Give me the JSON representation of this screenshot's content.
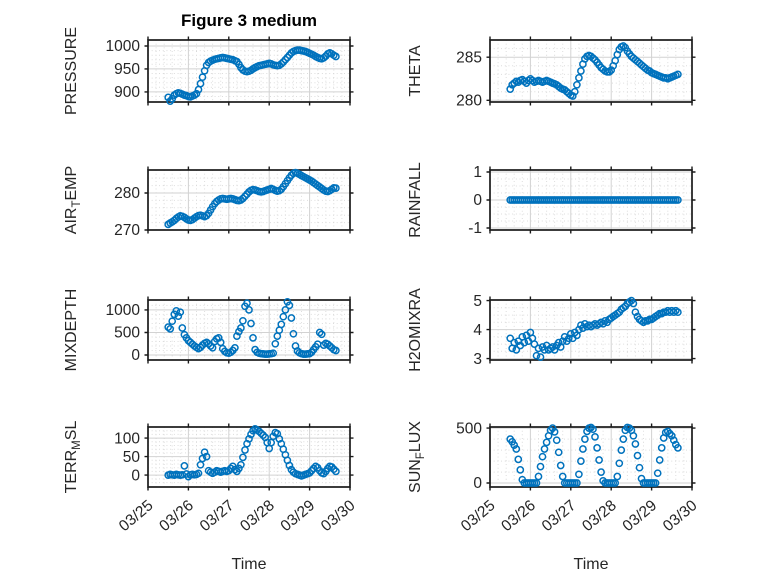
{
  "title": "Figure 3 medium",
  "chart_data": {
    "type": "scatter",
    "marker": "open-circle",
    "series_color": "#0072BD",
    "frame_color": "#1a1a1a",
    "grid_color": "#d9d9d9",
    "text_color": "#262626",
    "x_name": "Time",
    "x_tick_labels": [
      "03/25",
      "03/26",
      "03/27",
      "03/28",
      "03/29",
      "03/30"
    ],
    "x_tick_values": [
      0,
      1,
      2,
      3,
      4,
      5
    ],
    "xlim_days": [
      0,
      5
    ],
    "grid": "major-solid-minor-dotted",
    "legend": "none",
    "time_days": [
      0.5,
      0.55,
      0.6,
      0.65,
      0.7,
      0.75,
      0.8,
      0.85,
      0.9,
      0.95,
      1.0,
      1.05,
      1.1,
      1.15,
      1.2,
      1.25,
      1.3,
      1.35,
      1.4,
      1.45,
      1.5,
      1.55,
      1.6,
      1.65,
      1.7,
      1.75,
      1.8,
      1.85,
      1.9,
      1.95,
      2.0,
      2.05,
      2.1,
      2.15,
      2.2,
      2.25,
      2.3,
      2.35,
      2.4,
      2.45,
      2.5,
      2.55,
      2.6,
      2.65,
      2.7,
      2.75,
      2.8,
      2.85,
      2.9,
      2.95,
      3.0,
      3.05,
      3.1,
      3.15,
      3.2,
      3.25,
      3.3,
      3.35,
      3.4,
      3.45,
      3.5,
      3.55,
      3.6,
      3.65,
      3.7,
      3.75,
      3.8,
      3.85,
      3.9,
      3.95,
      4.0,
      4.05,
      4.1,
      4.15,
      4.2,
      4.25,
      4.3,
      4.35,
      4.4,
      4.45,
      4.5,
      4.55,
      4.6,
      4.65
    ],
    "subplots": [
      {
        "name": "PRESSURE",
        "label_pre": "PRESSURE",
        "label_sub": "",
        "label_post": "",
        "row": 0,
        "col": 0,
        "ylim": [
          878,
          1013
        ],
        "yticks": [
          900,
          950,
          1000
        ],
        "y_minor_step": 10,
        "values": [
          888,
          880,
          885,
          893,
          896,
          898,
          897,
          895,
          893,
          892,
          890,
          889,
          891,
          893,
          896,
          905,
          918,
          932,
          946,
          958,
          964,
          967,
          969,
          971,
          972,
          973,
          974,
          975,
          974,
          973,
          972,
          971,
          970,
          968,
          966,
          960,
          953,
          948,
          945,
          944,
          945,
          947,
          950,
          953,
          955,
          957,
          958,
          959,
          960,
          961,
          962,
          961,
          959,
          958,
          957,
          958,
          961,
          965,
          970,
          975,
          980,
          985,
          988,
          990,
          991,
          991,
          990,
          989,
          988,
          986,
          984,
          982,
          980,
          977,
          975,
          973,
          972,
          974,
          978,
          983,
          985,
          983,
          980,
          977
        ]
      },
      {
        "name": "THETA",
        "label_pre": "THETA",
        "label_sub": "",
        "label_post": "",
        "row": 0,
        "col": 1,
        "ylim": [
          279.8,
          287.0
        ],
        "yticks": [
          280,
          285
        ],
        "y_minor_step": 1,
        "values": [
          281.3,
          281.8,
          282.0,
          282.2,
          282.1,
          282.3,
          282.4,
          282.2,
          282.0,
          282.3,
          282.5,
          282.3,
          282.1,
          282.2,
          282.3,
          282.2,
          282.1,
          282.2,
          282.3,
          282.2,
          282.1,
          282.0,
          281.9,
          281.8,
          281.6,
          281.4,
          281.3,
          281.2,
          281.0,
          280.8,
          280.6,
          280.5,
          281.0,
          281.8,
          282.6,
          283.4,
          284.2,
          284.8,
          285.1,
          285.2,
          285.1,
          284.9,
          284.7,
          284.4,
          284.1,
          283.8,
          283.6,
          283.4,
          283.3,
          283.3,
          283.5,
          284.0,
          284.6,
          285.3,
          285.9,
          286.2,
          286.3,
          286.1,
          285.7,
          285.4,
          285.1,
          284.9,
          284.7,
          284.5,
          284.3,
          284.1,
          283.9,
          283.7,
          283.5,
          283.4,
          283.2,
          283.1,
          283.0,
          282.9,
          282.8,
          282.7,
          282.6,
          282.6,
          282.5,
          282.6,
          282.7,
          282.8,
          282.9,
          283.0
        ]
      },
      {
        "name": "AIR_TEMP",
        "label_pre": "AIR",
        "label_sub": "T",
        "label_post": "EMP",
        "row": 1,
        "col": 0,
        "ylim": [
          270,
          286.2
        ],
        "yticks": [
          270,
          280
        ],
        "y_minor_step": 2,
        "values": [
          271.5,
          271.9,
          272.2,
          272.6,
          273.1,
          273.5,
          273.8,
          273.7,
          273.4,
          273.0,
          272.7,
          272.6,
          272.8,
          273.2,
          273.6,
          273.9,
          274.0,
          273.8,
          273.6,
          273.9,
          274.5,
          275.4,
          276.3,
          277.1,
          277.7,
          278.1,
          278.4,
          278.5,
          278.4,
          278.3,
          278.4,
          278.5,
          278.4,
          278.2,
          278.0,
          277.9,
          278.1,
          278.5,
          279.1,
          279.7,
          280.3,
          280.7,
          280.9,
          280.8,
          280.6,
          280.4,
          280.3,
          280.4,
          280.6,
          280.8,
          281.0,
          281.2,
          281.0,
          280.7,
          280.5,
          280.6,
          281.0,
          281.7,
          282.5,
          283.3,
          284.1,
          284.8,
          285.3,
          285.5,
          285.3,
          285.0,
          284.7,
          284.4,
          284.1,
          283.8,
          283.5,
          283.2,
          282.8,
          282.4,
          282.0,
          281.6,
          281.2,
          280.8,
          280.5,
          280.4,
          280.6,
          281.0,
          281.4,
          281.3
        ]
      },
      {
        "name": "RAINFALL",
        "label_pre": "RAINFALL",
        "label_sub": "",
        "label_post": "",
        "row": 1,
        "col": 1,
        "ylim": [
          -1.07,
          1.07
        ],
        "yticks": [
          -1,
          0,
          1
        ],
        "y_minor_step": 0.25,
        "values": [
          0,
          0,
          0,
          0,
          0,
          0,
          0,
          0,
          0,
          0,
          0,
          0,
          0,
          0,
          0,
          0,
          0,
          0,
          0,
          0,
          0,
          0,
          0,
          0,
          0,
          0,
          0,
          0,
          0,
          0,
          0,
          0,
          0,
          0,
          0,
          0,
          0,
          0,
          0,
          0,
          0,
          0,
          0,
          0,
          0,
          0,
          0,
          0,
          0,
          0,
          0,
          0,
          0,
          0,
          0,
          0,
          0,
          0,
          0,
          0,
          0,
          0,
          0,
          0,
          0,
          0,
          0,
          0,
          0,
          0,
          0,
          0,
          0,
          0,
          0,
          0,
          0,
          0,
          0,
          0,
          0,
          0,
          0,
          0
        ]
      },
      {
        "name": "MIXDEPTH",
        "label_pre": "MIXDEPTH",
        "label_sub": "",
        "label_post": "",
        "row": 2,
        "col": 0,
        "ylim": [
          -110,
          1220
        ],
        "yticks": [
          0,
          500,
          1000
        ],
        "y_minor_step": 100,
        "values": [
          620,
          580,
          750,
          900,
          980,
          860,
          950,
          600,
          450,
          380,
          320,
          280,
          240,
          200,
          170,
          140,
          170,
          220,
          260,
          280,
          250,
          200,
          160,
          300,
          360,
          380,
          280,
          140,
          80,
          50,
          40,
          60,
          100,
          160,
          420,
          520,
          600,
          760,
          1080,
          1150,
          1000,
          700,
          380,
          120,
          60,
          40,
          30,
          25,
          20,
          20,
          25,
          30,
          40,
          250,
          420,
          550,
          680,
          850,
          1000,
          1180,
          1100,
          820,
          470,
          200,
          90,
          50,
          30,
          20,
          20,
          25,
          30,
          60,
          120,
          180,
          240,
          500,
          460,
          220,
          260,
          240,
          200,
          160,
          120,
          100
        ]
      },
      {
        "name": "H2OMIXRA",
        "label_pre": "H2OMIXRA",
        "label_sub": "",
        "label_post": "",
        "row": 2,
        "col": 1,
        "ylim": [
          2.95,
          5.02
        ],
        "yticks": [
          3,
          4,
          5
        ],
        "y_minor_step": 0.25,
        "values": [
          3.7,
          3.35,
          3.55,
          3.3,
          3.6,
          3.45,
          3.75,
          3.55,
          3.8,
          3.6,
          3.9,
          3.7,
          3.5,
          3.1,
          3.35,
          3.05,
          3.4,
          3.3,
          3.45,
          3.3,
          3.35,
          3.4,
          3.3,
          3.45,
          3.55,
          3.4,
          3.6,
          3.75,
          3.6,
          3.7,
          3.85,
          3.7,
          3.9,
          3.8,
          4.0,
          4.15,
          4.05,
          4.2,
          4.1,
          4.15,
          4.1,
          4.15,
          4.2,
          4.15,
          4.2,
          4.25,
          4.2,
          4.3,
          4.25,
          4.35,
          4.4,
          4.45,
          4.5,
          4.55,
          4.6,
          4.7,
          4.75,
          4.8,
          4.9,
          4.95,
          5.0,
          4.9,
          4.6,
          4.45,
          4.35,
          4.3,
          4.25,
          4.3,
          4.3,
          4.35,
          4.35,
          4.4,
          4.45,
          4.5,
          4.55,
          4.55,
          4.6,
          4.6,
          4.65,
          4.6,
          4.65,
          4.6,
          4.65,
          4.6
        ]
      },
      {
        "name": "TERR_MSL",
        "label_pre": "TERR",
        "label_sub": "M",
        "label_post": "SL",
        "row": 3,
        "col": 0,
        "ylim": [
          -32,
          130
        ],
        "yticks": [
          0,
          50,
          100
        ],
        "y_minor_step": 10,
        "values": [
          0,
          2,
          1,
          0,
          2,
          1,
          0,
          1,
          25,
          3,
          -4,
          1,
          2,
          1,
          2,
          5,
          28,
          45,
          62,
          50,
          12,
          8,
          5,
          8,
          12,
          10,
          8,
          10,
          12,
          10,
          12,
          18,
          24,
          15,
          10,
          18,
          28,
          48,
          68,
          85,
          98,
          110,
          120,
          125,
          122,
          118,
          113,
          108,
          102,
          88,
          72,
          88,
          105,
          115,
          112,
          98,
          85,
          70,
          55,
          40,
          26,
          15,
          8,
          4,
          2,
          0,
          -2,
          0,
          2,
          4,
          6,
          12,
          18,
          24,
          20,
          12,
          6,
          4,
          10,
          18,
          24,
          22,
          16,
          10
        ]
      },
      {
        "name": "SUN_FLUX",
        "label_pre": "SUN",
        "label_sub": "F",
        "label_post": "LUX",
        "row": 3,
        "col": 1,
        "ylim": [
          -36,
          510
        ],
        "yticks": [
          0,
          500
        ],
        "y_minor_step": 100,
        "values": [
          400,
          375,
          345,
          310,
          215,
          120,
          30,
          0,
          0,
          0,
          0,
          0,
          0,
          0,
          60,
          150,
          240,
          310,
          370,
          430,
          480,
          500,
          465,
          390,
          280,
          160,
          60,
          0,
          0,
          0,
          0,
          0,
          0,
          0,
          80,
          200,
          310,
          400,
          470,
          500,
          505,
          490,
          420,
          320,
          210,
          100,
          20,
          0,
          0,
          0,
          0,
          0,
          0,
          60,
          180,
          300,
          400,
          480,
          505,
          500,
          480,
          430,
          355,
          250,
          140,
          40,
          0,
          0,
          0,
          0,
          0,
          0,
          0,
          90,
          210,
          320,
          410,
          460,
          470,
          450,
          430,
          390,
          350,
          320
        ]
      }
    ]
  }
}
